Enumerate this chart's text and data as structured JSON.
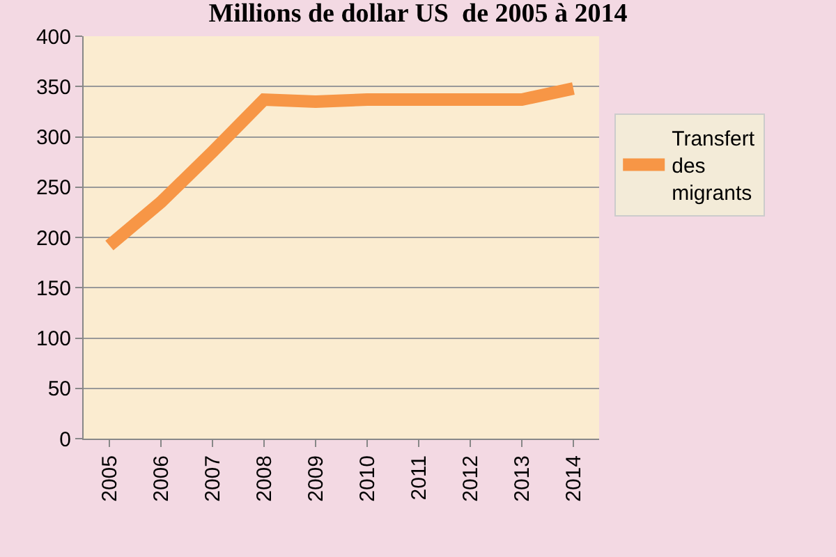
{
  "chart_data": {
    "type": "line",
    "title": "Millions de dollar US  de 2005 à 2014",
    "categories": [
      "2005",
      "2006",
      "2007",
      "2008",
      "2009",
      "2010",
      "2011",
      "2012",
      "2013",
      "2014"
    ],
    "series": [
      {
        "name": "Transfert des migrants",
        "color": "#f79646",
        "values": [
          192,
          235,
          285,
          337,
          335,
          337,
          337,
          337,
          337,
          348
        ]
      }
    ],
    "ylim": [
      0,
      400
    ],
    "yticks": [
      0,
      50,
      100,
      150,
      200,
      250,
      300,
      350,
      400
    ],
    "grid": "y",
    "legend": "right",
    "marker": "none",
    "line_style": "solid"
  }
}
